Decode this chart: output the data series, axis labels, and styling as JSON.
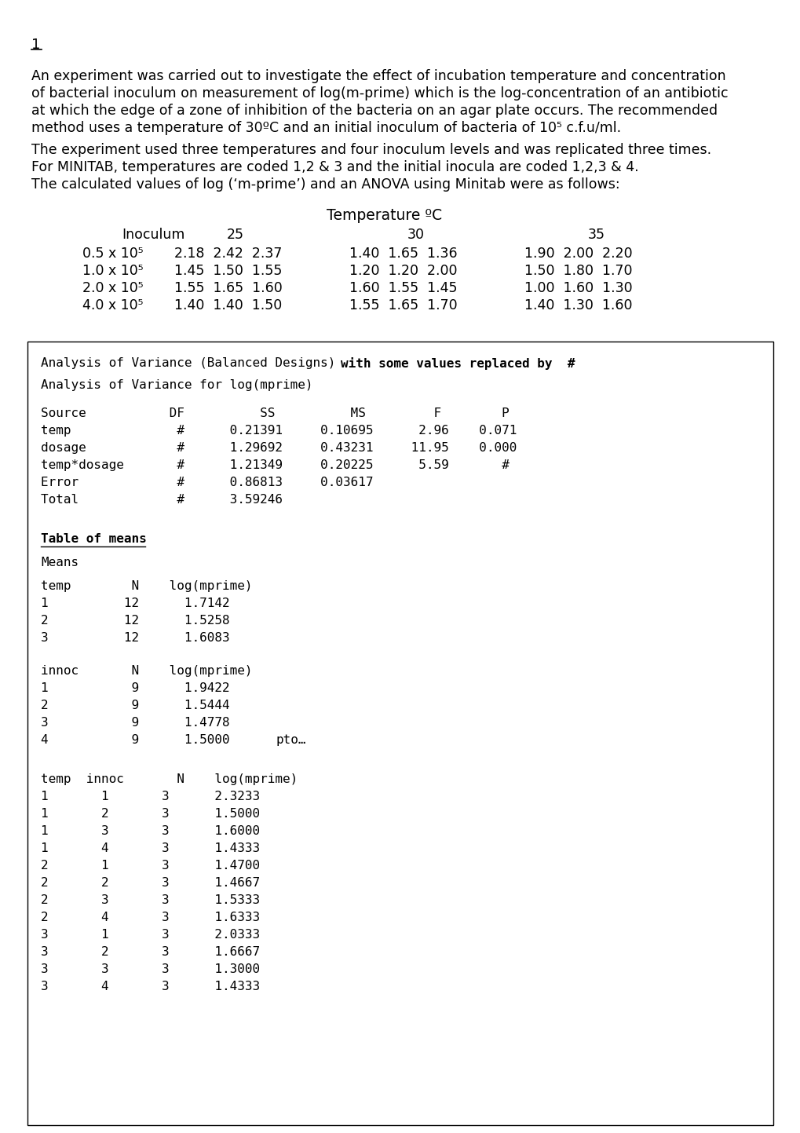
{
  "bg_color": "#ffffff",
  "page_number": "1",
  "para1_lines": [
    "An experiment was carried out to investigate the effect of incubation temperature and concentration",
    "of bacterial inoculum on measurement of log(m-prime) which is the log-concentration of an antibiotic",
    "at which the edge of a zone of inhibition of the bacteria on an agar plate occurs. The recommended",
    "method uses a temperature of 30ºC and an initial inoculum of bacteria of 10⁵ c.f.u/ml."
  ],
  "para2_line1": "The experiment used three temperatures and four inoculum levels and was replicated three times.",
  "para2_line2": "For MINITAB, temperatures are coded 1,2 & 3 and the initial inocula are coded 1,2,3 & 4.",
  "para2_line3": "The calculated values of log (‘m-prime’) and an ANOVA using Minitab were as follows:",
  "table_header_temp": "Temperature ºC",
  "table_col_inoculum": "Inoculum",
  "table_col_25": "25",
  "table_col_30": "30",
  "table_col_35": "35",
  "table_rows": [
    {
      "inoculum": "0.5 x 10⁵",
      "t25": "2.18  2.42  2.37",
      "t30": "1.40  1.65  1.36",
      "t35": "1.90  2.00  2.20"
    },
    {
      "inoculum": "1.0 x 10⁵",
      "t25": "1.45  1.50  1.55",
      "t30": "1.20  1.20  2.00",
      "t35": "1.50  1.80  1.70"
    },
    {
      "inoculum": "2.0 x 10⁵",
      "t25": "1.55  1.65  1.60",
      "t30": "1.60  1.55  1.45",
      "t35": "1.00  1.60  1.30"
    },
    {
      "inoculum": "4.0 x 10⁵",
      "t25": "1.40  1.40  1.50",
      "t30": "1.55  1.65  1.70",
      "t35": "1.40  1.30  1.60"
    }
  ],
  "box_line1_normal": "Analysis of Variance (Balanced Designs) ",
  "box_line1_bold": "with some values replaced by  #",
  "box_line2": "Analysis of Variance for log(mprime)",
  "box_anova_header": "Source           DF          SS          MS         F        P",
  "box_anova_rows": [
    "temp              #      0.21391     0.10695      2.96    0.071",
    "dosage            #      1.29692     0.43231     11.95    0.000",
    "temp*dosage       #      1.21349     0.20225      5.59       #",
    "Error             #      0.86813     0.03617",
    "Total             #      3.59246"
  ],
  "box_means_header": "Table of means",
  "box_means_text": "Means",
  "box_temp_header": "temp        N    log(mprime)",
  "box_temp_rows": [
    "1          12      1.7142",
    "2          12      1.5258",
    "3          12      1.6083"
  ],
  "box_innoc_header": "innoc       N    log(mprime)",
  "box_innoc_rows": [
    "1           9      1.9422",
    "2           9      1.5444",
    "3           9      1.4778",
    "4           9      1.5000"
  ],
  "box_pto": "pto…",
  "box_tempinnoc_header": "temp  innoc       N    log(mprime)",
  "box_tempinnoc_rows": [
    "1       1       3      2.3233",
    "1       2       3      1.5000",
    "1       3       3      1.6000",
    "1       4       3      1.4333",
    "2       1       3      1.4700",
    "2       2       3      1.4667",
    "2       3       3      1.5333",
    "2       4       3      1.6333",
    "3       1       3      2.0333",
    "3       2       3      1.6667",
    "3       3       3      1.3000",
    "3       4       3      1.4333"
  ]
}
